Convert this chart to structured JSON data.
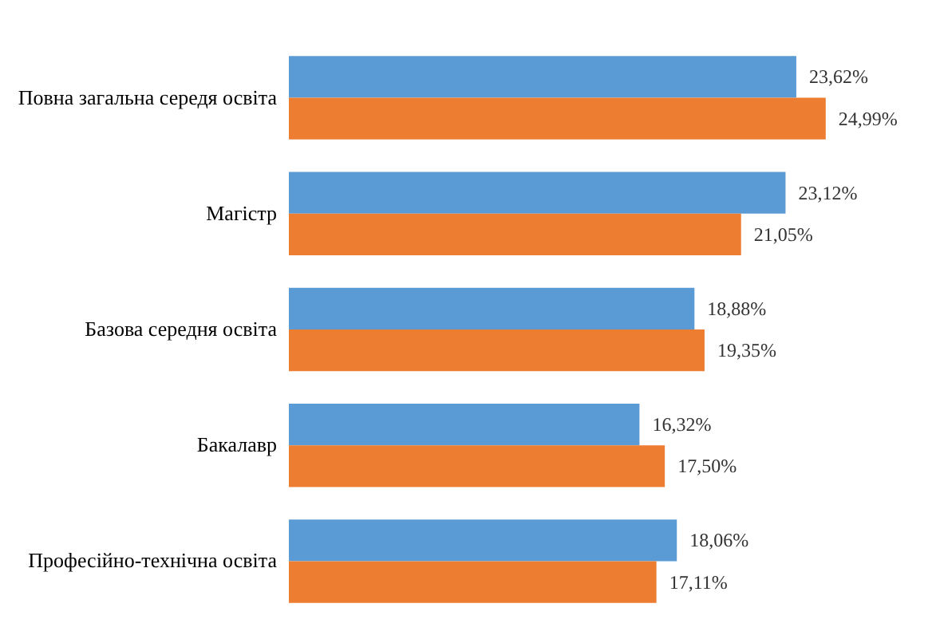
{
  "chart_data": {
    "type": "bar",
    "orientation": "horizontal",
    "categories": [
      "Повна загальна середя освіта",
      "Магістр",
      "Базова середня освіта",
      "Бакалавр",
      "Професійно-технічна освіта"
    ],
    "series": [
      {
        "color": "#5b9bd5",
        "values": [
          23.62,
          23.12,
          18.88,
          16.32,
          18.06
        ],
        "value_labels": [
          "23,62%",
          "23,12%",
          "18,88%",
          "16,32%",
          "18,06%"
        ]
      },
      {
        "color": "#ed7d31",
        "values": [
          24.99,
          21.05,
          19.35,
          17.5,
          17.11
        ],
        "value_labels": [
          "24,99%",
          "21,05%",
          "19,35%",
          "17,50%",
          "17,11%"
        ]
      }
    ],
    "grid": false,
    "legend": false
  }
}
